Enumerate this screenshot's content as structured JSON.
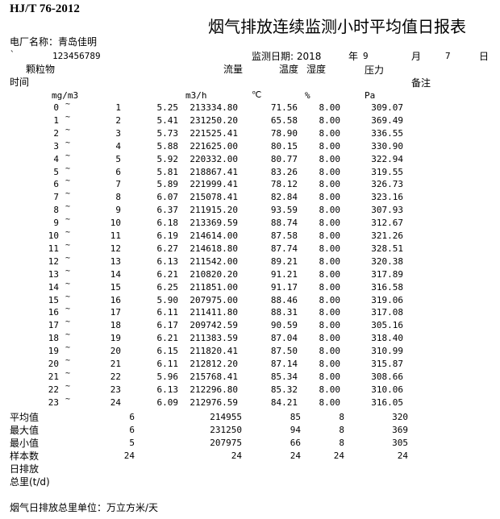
{
  "standard": "HJ/T 76-2012",
  "title": "烟气排放连续监测小时平均值日报表",
  "plant": "电厂名称：青岛佳明",
  "backtick": "`",
  "code": "123456789",
  "date": {
    "label": "监测日期: 2018",
    "year_label": "年",
    "month": "9",
    "month_label": "月",
    "day": "7",
    "day_label": "日"
  },
  "headers": {
    "pm": "颗粒物",
    "flow": "流量",
    "temp": "温度",
    "humidity": "湿度",
    "pressure": "压力",
    "time": "时间",
    "remark": "备注"
  },
  "units": {
    "pm": "mg/m3",
    "flow": "m3/h",
    "temp": "℃",
    "humidity": "%",
    "pressure": "Pa"
  },
  "tilde": "~",
  "rows": [
    [
      "0",
      "1",
      "5.25",
      "213334.80",
      "71.56",
      "8.00",
      "309.07"
    ],
    [
      "1",
      "2",
      "5.41",
      "231250.20",
      "65.58",
      "8.00",
      "369.49"
    ],
    [
      "2",
      "3",
      "5.73",
      "221525.41",
      "78.90",
      "8.00",
      "336.55"
    ],
    [
      "3",
      "4",
      "5.88",
      "221625.00",
      "80.15",
      "8.00",
      "330.90"
    ],
    [
      "4",
      "5",
      "5.92",
      "220332.00",
      "80.77",
      "8.00",
      "322.94"
    ],
    [
      "5",
      "6",
      "5.81",
      "218867.41",
      "83.26",
      "8.00",
      "319.55"
    ],
    [
      "6",
      "7",
      "5.89",
      "221999.41",
      "78.12",
      "8.00",
      "326.73"
    ],
    [
      "7",
      "8",
      "6.07",
      "215078.41",
      "82.84",
      "8.00",
      "323.16"
    ],
    [
      "8",
      "9",
      "6.37",
      "211915.20",
      "93.59",
      "8.00",
      "307.93"
    ],
    [
      "9",
      "10",
      "6.18",
      "213369.59",
      "88.74",
      "8.00",
      "312.67"
    ],
    [
      "10",
      "11",
      "6.19",
      "214614.00",
      "87.58",
      "8.00",
      "321.26"
    ],
    [
      "11",
      "12",
      "6.27",
      "214618.80",
      "87.74",
      "8.00",
      "328.51"
    ],
    [
      "12",
      "13",
      "6.13",
      "211542.00",
      "89.21",
      "8.00",
      "320.38"
    ],
    [
      "13",
      "14",
      "6.21",
      "210820.20",
      "91.21",
      "8.00",
      "317.89"
    ],
    [
      "14",
      "15",
      "6.25",
      "211851.00",
      "91.17",
      "8.00",
      "316.58"
    ],
    [
      "15",
      "16",
      "5.90",
      "207975.00",
      "88.46",
      "8.00",
      "319.06"
    ],
    [
      "16",
      "17",
      "6.11",
      "211411.80",
      "88.31",
      "8.00",
      "317.08"
    ],
    [
      "17",
      "18",
      "6.17",
      "209742.59",
      "90.59",
      "8.00",
      "305.16"
    ],
    [
      "18",
      "19",
      "6.21",
      "211383.59",
      "87.04",
      "8.00",
      "318.40"
    ],
    [
      "19",
      "20",
      "6.15",
      "211820.41",
      "87.50",
      "8.00",
      "310.99"
    ],
    [
      "20",
      "21",
      "6.11",
      "212812.20",
      "87.14",
      "8.00",
      "315.87"
    ],
    [
      "21",
      "22",
      "5.96",
      "215768.41",
      "85.34",
      "8.00",
      "308.66"
    ],
    [
      "22",
      "23",
      "6.13",
      "212296.80",
      "85.32",
      "8.00",
      "310.06"
    ],
    [
      "23",
      "24",
      "6.09",
      "212976.59",
      "84.21",
      "8.00",
      "316.05"
    ]
  ],
  "summary": [
    {
      "label": "平均值",
      "values": [
        "6",
        "214955",
        "85",
        "8",
        "320"
      ]
    },
    {
      "label": "最大值",
      "values": [
        "6",
        "231250",
        "94",
        "8",
        "369"
      ]
    },
    {
      "label": "最小值",
      "values": [
        "5",
        "207975",
        "66",
        "8",
        "305"
      ]
    },
    {
      "label": "样本数",
      "values": [
        "24",
        "24",
        "24",
        "24",
        "24"
      ]
    },
    {
      "label": "日排放",
      "values": []
    },
    {
      "label": "总里(t/d)",
      "values": []
    }
  ],
  "footer": "烟气日排放总里单位：万立方米/天"
}
